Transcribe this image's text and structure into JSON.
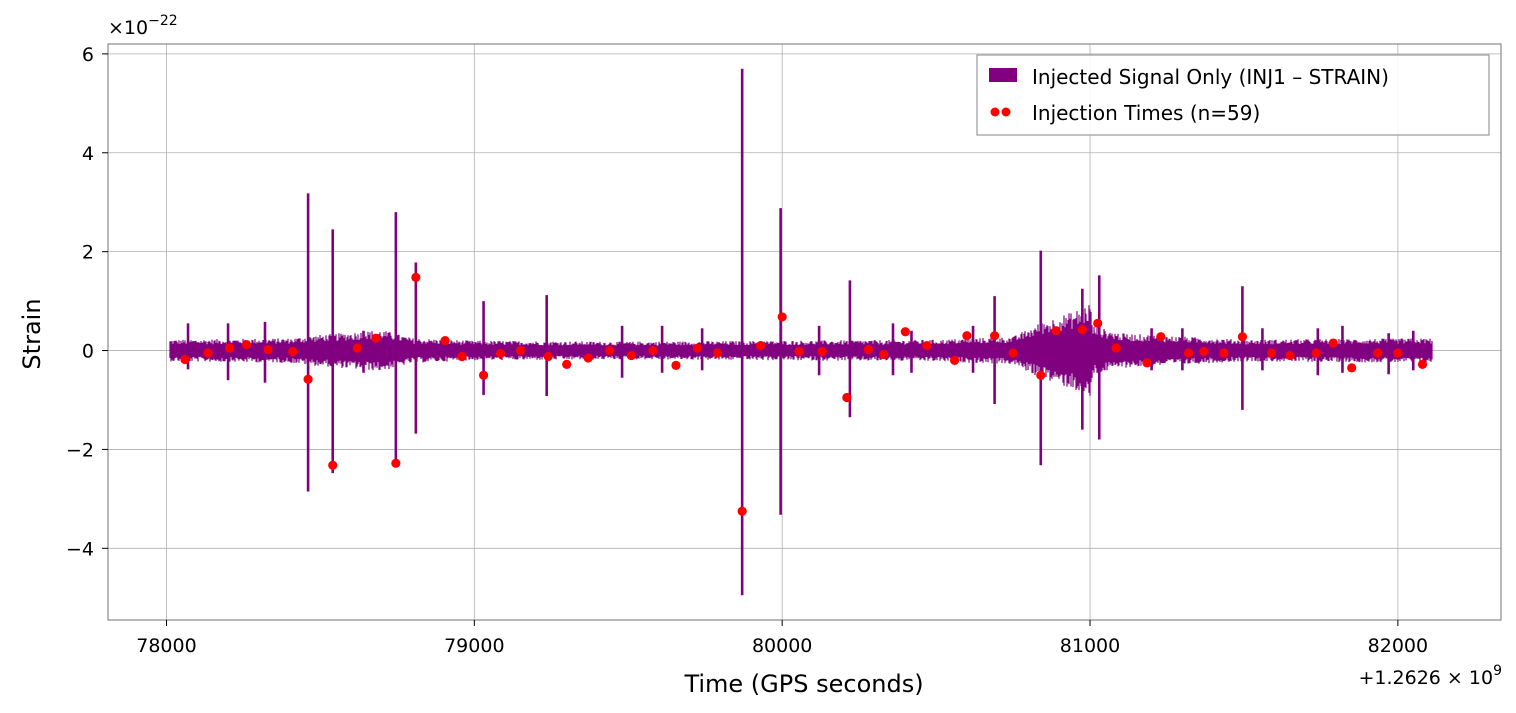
{
  "chart_data": {
    "type": "line",
    "title": "",
    "xlabel": "Time (GPS seconds)",
    "ylabel": "Strain",
    "x_offset_label": "+1.2626",
    "x_offset_exp": "9",
    "y_scale_label": "×10",
    "y_scale_exp": "−22",
    "xlim": [
      77810,
      82335
    ],
    "ylim": [
      -5.45,
      6.2
    ],
    "x_ticks": [
      78000,
      79000,
      80000,
      81000,
      82000
    ],
    "x_tick_labels": [
      "78000",
      "79000",
      "80000",
      "81000",
      "82000"
    ],
    "y_ticks": [
      -4,
      -2,
      0,
      2,
      4,
      6
    ],
    "y_tick_labels": [
      "−4",
      "−2",
      "0",
      "2",
      "4",
      "6"
    ],
    "grid": true,
    "legend_position": "top-right",
    "colors": {
      "signal": "#800080",
      "injection": "#ff0000",
      "grid": "#b0b0b0",
      "spine": "#888888"
    },
    "series": [
      {
        "name": "Injected Signal Only (INJ1 – STRAIN)",
        "kind": "signal",
        "t_start": 78010,
        "t_end": 82110,
        "baseline_envelope": [
          [
            78010,
            0.22
          ],
          [
            78400,
            0.25
          ],
          [
            78500,
            0.32
          ],
          [
            78700,
            0.42
          ],
          [
            78800,
            0.25
          ],
          [
            79000,
            0.2
          ],
          [
            79500,
            0.18
          ],
          [
            80000,
            0.2
          ],
          [
            80500,
            0.22
          ],
          [
            80750,
            0.28
          ],
          [
            80850,
            0.6
          ],
          [
            80950,
            0.8
          ],
          [
            81000,
            1.0
          ],
          [
            81010,
            0.5
          ],
          [
            81100,
            0.35
          ],
          [
            81500,
            0.22
          ],
          [
            82110,
            0.25
          ]
        ],
        "spikes": [
          {
            "t": 78460,
            "max": 3.18,
            "min": -2.85
          },
          {
            "t": 78540,
            "max": 2.45,
            "min": -2.48
          },
          {
            "t": 78745,
            "max": 2.8,
            "min": -2.3
          },
          {
            "t": 78810,
            "max": 1.78,
            "min": -1.68
          },
          {
            "t": 79030,
            "max": 1.0,
            "min": -0.9
          },
          {
            "t": 79235,
            "max": 1.12,
            "min": -0.92
          },
          {
            "t": 79870,
            "max": 5.7,
            "min": -4.95
          },
          {
            "t": 79995,
            "max": 2.88,
            "min": -3.32
          },
          {
            "t": 80220,
            "max": 1.42,
            "min": -1.35
          },
          {
            "t": 80840,
            "max": 2.02,
            "min": -2.32
          },
          {
            "t": 80975,
            "max": 1.25,
            "min": -1.6
          },
          {
            "t": 81030,
            "max": 1.52,
            "min": -1.8
          },
          {
            "t": 81495,
            "max": 1.3,
            "min": -1.2
          },
          {
            "t": 78070,
            "max": 0.55,
            "min": -0.38
          },
          {
            "t": 78200,
            "max": 0.55,
            "min": -0.6
          },
          {
            "t": 78320,
            "max": 0.58,
            "min": -0.65
          },
          {
            "t": 78640,
            "max": 0.4,
            "min": -0.45
          },
          {
            "t": 79480,
            "max": 0.5,
            "min": -0.55
          },
          {
            "t": 79610,
            "max": 0.5,
            "min": -0.45
          },
          {
            "t": 79740,
            "max": 0.45,
            "min": -0.4
          },
          {
            "t": 80120,
            "max": 0.5,
            "min": -0.5
          },
          {
            "t": 80360,
            "max": 0.55,
            "min": -0.5
          },
          {
            "t": 80420,
            "max": 0.4,
            "min": -0.45
          },
          {
            "t": 80620,
            "max": 0.5,
            "min": -0.45
          },
          {
            "t": 80690,
            "max": 1.1,
            "min": -1.08
          },
          {
            "t": 81200,
            "max": 0.45,
            "min": -0.4
          },
          {
            "t": 81300,
            "max": 0.45,
            "min": -0.4
          },
          {
            "t": 81560,
            "max": 0.45,
            "min": -0.4
          },
          {
            "t": 81740,
            "max": 0.45,
            "min": -0.5
          },
          {
            "t": 81820,
            "max": 0.5,
            "min": -0.45
          },
          {
            "t": 81970,
            "max": 0.35,
            "min": -0.48
          },
          {
            "t": 82050,
            "max": 0.4,
            "min": -0.4
          }
        ]
      },
      {
        "name": "Injection Times (n=59)",
        "kind": "scatter",
        "points": [
          [
            78060,
            -0.18
          ],
          [
            78135,
            -0.05
          ],
          [
            78205,
            0.05
          ],
          [
            78260,
            0.12
          ],
          [
            78330,
            0.02
          ],
          [
            78410,
            -0.02
          ],
          [
            78460,
            -0.58
          ],
          [
            78540,
            -2.32
          ],
          [
            78620,
            0.05
          ],
          [
            78680,
            0.25
          ],
          [
            78745,
            -2.28
          ],
          [
            78810,
            1.48
          ],
          [
            78905,
            0.2
          ],
          [
            78960,
            -0.12
          ],
          [
            79030,
            -0.5
          ],
          [
            79085,
            -0.06
          ],
          [
            79150,
            0.0
          ],
          [
            79240,
            -0.12
          ],
          [
            79300,
            -0.28
          ],
          [
            79370,
            -0.15
          ],
          [
            79440,
            0.0
          ],
          [
            79510,
            -0.1
          ],
          [
            79580,
            0.0
          ],
          [
            79655,
            -0.3
          ],
          [
            79725,
            0.05
          ],
          [
            79790,
            -0.05
          ],
          [
            79870,
            -3.25
          ],
          [
            79930,
            0.1
          ],
          [
            80000,
            0.68
          ],
          [
            80055,
            -0.02
          ],
          [
            80130,
            -0.02
          ],
          [
            80210,
            -0.95
          ],
          [
            80280,
            0.02
          ],
          [
            80330,
            -0.08
          ],
          [
            80400,
            0.38
          ],
          [
            80470,
            0.1
          ],
          [
            80560,
            -0.2
          ],
          [
            80600,
            0.3
          ],
          [
            80690,
            0.3
          ],
          [
            80750,
            -0.05
          ],
          [
            80840,
            -0.5
          ],
          [
            80890,
            0.4
          ],
          [
            80975,
            0.42
          ],
          [
            81025,
            0.55
          ],
          [
            81085,
            0.05
          ],
          [
            81185,
            -0.25
          ],
          [
            81230,
            0.28
          ],
          [
            81320,
            -0.05
          ],
          [
            81370,
            -0.02
          ],
          [
            81435,
            -0.05
          ],
          [
            81495,
            0.28
          ],
          [
            81590,
            -0.05
          ],
          [
            81650,
            -0.1
          ],
          [
            81735,
            -0.05
          ],
          [
            81790,
            0.15
          ],
          [
            81850,
            -0.35
          ],
          [
            81935,
            -0.05
          ],
          [
            82000,
            -0.05
          ],
          [
            82080,
            -0.28
          ]
        ]
      }
    ]
  }
}
